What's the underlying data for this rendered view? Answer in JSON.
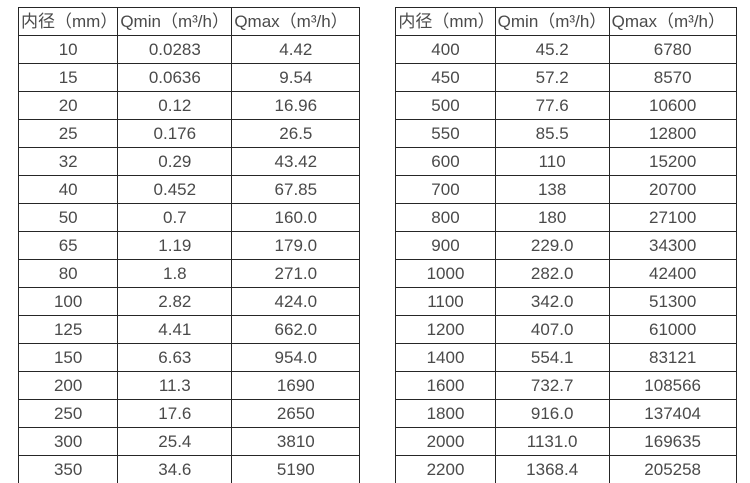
{
  "colors": {
    "background": "#ffffff",
    "border": "#262626",
    "text": "#4a4a4a"
  },
  "tables": [
    {
      "name": "flow-table-small-diameters",
      "headers": [
        "内径（mm）",
        "Qmin（m³/h）",
        "Qmax（m³/h）"
      ],
      "rows": [
        [
          "10",
          "0.0283",
          "4.42"
        ],
        [
          "15",
          "0.0636",
          "9.54"
        ],
        [
          "20",
          "0.12",
          "16.96"
        ],
        [
          "25",
          "0.176",
          "26.5"
        ],
        [
          "32",
          "0.29",
          "43.42"
        ],
        [
          "40",
          "0.452",
          "67.85"
        ],
        [
          "50",
          "0.7",
          "160.0"
        ],
        [
          "65",
          "1.19",
          "179.0"
        ],
        [
          "80",
          "1.8",
          "271.0"
        ],
        [
          "100",
          "2.82",
          "424.0"
        ],
        [
          "125",
          "4.41",
          "662.0"
        ],
        [
          "150",
          "6.63",
          "954.0"
        ],
        [
          "200",
          "11.3",
          "1690"
        ],
        [
          "250",
          "17.6",
          "2650"
        ],
        [
          "300",
          "25.4",
          "3810"
        ],
        [
          "350",
          "34.6",
          "5190"
        ]
      ]
    },
    {
      "name": "flow-table-large-diameters",
      "headers": [
        "内径（mm）",
        "Qmin（m³/h）",
        "Qmax（m³/h）"
      ],
      "rows": [
        [
          "400",
          "45.2",
          "6780"
        ],
        [
          "450",
          "57.2",
          "8570"
        ],
        [
          "500",
          "77.6",
          "10600"
        ],
        [
          "550",
          "85.5",
          "12800"
        ],
        [
          "600",
          "110",
          "15200"
        ],
        [
          "700",
          "138",
          "20700"
        ],
        [
          "800",
          "180",
          "27100"
        ],
        [
          "900",
          "229.0",
          "34300"
        ],
        [
          "1000",
          "282.0",
          "42400"
        ],
        [
          "1100",
          "342.0",
          "51300"
        ],
        [
          "1200",
          "407.0",
          "61000"
        ],
        [
          "1400",
          "554.1",
          "83121"
        ],
        [
          "1600",
          "732.7",
          "108566"
        ],
        [
          "1800",
          "916.0",
          "137404"
        ],
        [
          "2000",
          "1131.0",
          "169635"
        ],
        [
          "2200",
          "1368.4",
          "205258"
        ]
      ]
    }
  ]
}
